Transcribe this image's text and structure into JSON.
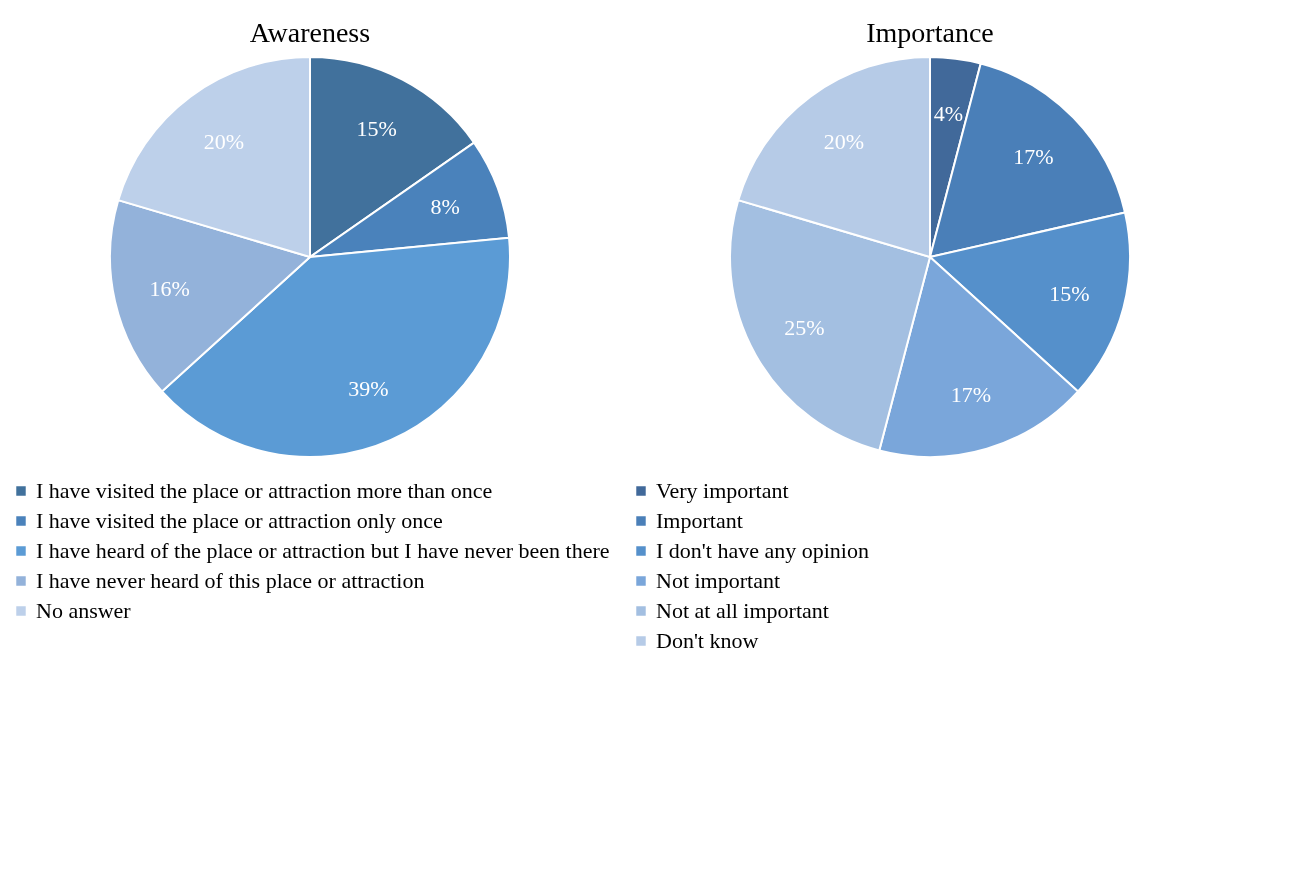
{
  "chart_data": [
    {
      "type": "pie",
      "title": "Awareness",
      "categories": [
        "I have visited the place or attraction more than once",
        "I have visited the place or attraction only once",
        "I have heard of the place or attraction but I have never been there",
        "I have never heard of this place or attraction",
        "No answer"
      ],
      "values": [
        15,
        8,
        39,
        16,
        20
      ],
      "value_labels": [
        "15%",
        "8%",
        "39%",
        "16%",
        "20%"
      ],
      "colors": [
        "#41719c",
        "#4a82bb",
        "#5b9bd5",
        "#93b2da",
        "#bdd0ea"
      ],
      "legend": "bottom"
    },
    {
      "type": "pie",
      "title": "Importance",
      "categories": [
        "Very important",
        "Important",
        "I don't have any opinion",
        "Not important",
        "Not at all important",
        "Don't know"
      ],
      "values": [
        4,
        17,
        15,
        17,
        25,
        20
      ],
      "value_labels": [
        "4%",
        "17%",
        "15%",
        "17%",
        "25%",
        "20%"
      ],
      "colors": [
        "#41699a",
        "#4a7fb8",
        "#5590cb",
        "#7aa6da",
        "#a3bfe1",
        "#b6cbe7"
      ],
      "legend": "bottom"
    }
  ]
}
